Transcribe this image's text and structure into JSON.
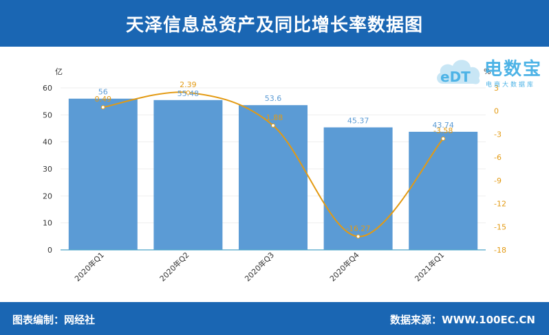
{
  "header": {
    "title": "天泽信息总资产及同比增长率数据图"
  },
  "footer": {
    "left": "图表编制：网经社",
    "right": "数据来源：WWW.100EC.CN"
  },
  "watermark": {
    "title": "电数宝",
    "subtitle": "电商大数据库",
    "icon_text": "eDT"
  },
  "chart_data": {
    "type": "bar",
    "categories": [
      "2020年Q1",
      "2020年Q2",
      "2020年Q3",
      "2020年Q4",
      "2021年Q1"
    ],
    "series": [
      {
        "type": "bar",
        "axis": "left",
        "values": [
          56,
          55.48,
          53.6,
          45.37,
          43.74
        ],
        "labels": [
          "56",
          "55.48",
          "53.6",
          "45.37",
          "43.74"
        ]
      },
      {
        "type": "line",
        "axis": "right",
        "values": [
          0.49,
          2.39,
          -1.88,
          -16.27,
          -3.58
        ],
        "labels": [
          "0.49",
          "2.39",
          "-1.88",
          "-16.27",
          "-3.58"
        ]
      }
    ],
    "y_left": {
      "unit": "亿",
      "ticks": [
        0,
        10,
        20,
        30,
        40,
        50,
        60
      ],
      "range": [
        0,
        60
      ]
    },
    "y_right": {
      "unit": "%",
      "ticks": [
        3,
        0,
        -3,
        -6,
        -9,
        -12,
        -15,
        -18
      ],
      "range": [
        -18,
        3
      ]
    },
    "colors": {
      "bar": "#5b9bd5",
      "bar_label": "#5b9bd5",
      "line": "#e39a12",
      "line_label": "#e39a12",
      "axis_text": "#333333",
      "right_axis_text": "#e39a12",
      "grid": "#eeeeee",
      "baseline": "#4aa5c8"
    }
  }
}
